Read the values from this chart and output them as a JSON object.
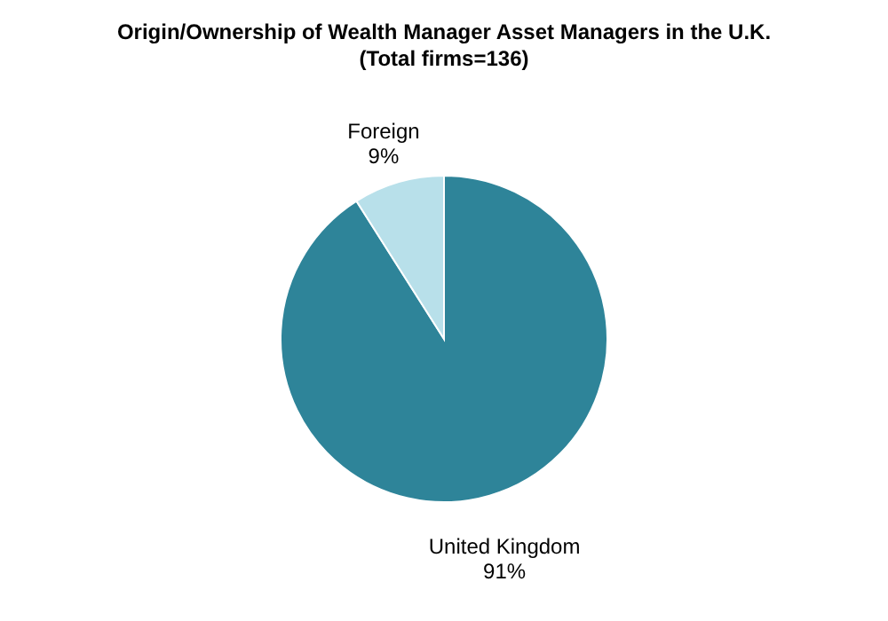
{
  "chart_data": {
    "type": "pie",
    "title": "Origin/Ownership of Wealth Manager Asset Managers in the U.K.",
    "subtitle": "(Total firms=136)",
    "categories": [
      "United Kingdom",
      "Foreign"
    ],
    "values": [
      91,
      9
    ],
    "value_labels": [
      "91%",
      "9%"
    ],
    "colors": [
      "#2e8499",
      "#b8e0ea"
    ],
    "legend": false
  }
}
